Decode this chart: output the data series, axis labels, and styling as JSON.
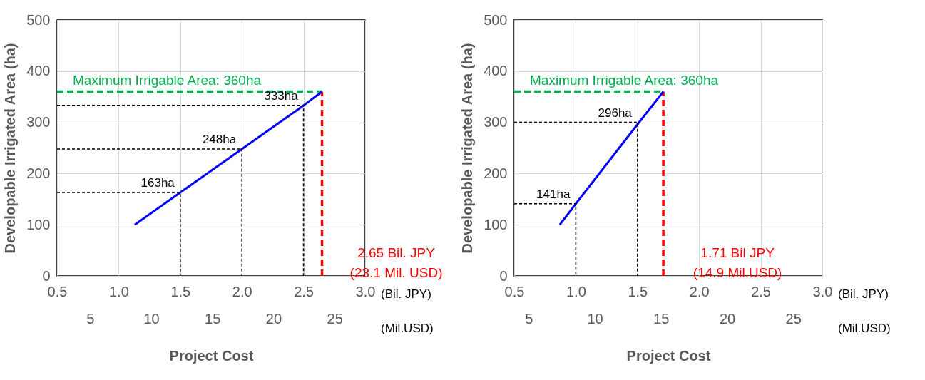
{
  "chart_data": [
    {
      "type": "line",
      "xlabel": "Project Cost",
      "ylabel": "Developable Irrigated Area (ha)",
      "x2label": "(Mil.USD)",
      "xlim": [
        0.5,
        3.0
      ],
      "xticks": [
        0.5,
        {
          "value": 1,
          "label": "1.0"
        },
        1.5,
        {
          "value": 2,
          "label": "2.0"
        },
        2.5,
        {
          "value": 3,
          "label": "3.0"
        }
      ],
      "x2lim": [
        2.3,
        27.5
      ],
      "x2ticks": [
        5,
        10,
        15,
        20,
        25
      ],
      "ylim": [
        0,
        500
      ],
      "yticks": [
        0,
        100,
        200,
        300,
        400,
        500
      ],
      "grid": true,
      "series": [
        {
          "color": "#0000ff",
          "line_style": "solid",
          "x": [
            1.13,
            1.5,
            2.0,
            2.5,
            2.65
          ],
          "values": [
            100,
            163,
            248,
            333,
            360
          ]
        },
        {
          "color": "#000000",
          "line_style": "dashed",
          "x": [
            0.5,
            1.5,
            1.5
          ],
          "values": [
            163,
            163,
            0
          ]
        },
        {
          "color": "#000000",
          "line_style": "dashed",
          "x": [
            0.5,
            2.0,
            2.0
          ],
          "values": [
            248,
            248,
            0
          ]
        },
        {
          "color": "#000000",
          "line_style": "dashed",
          "x": [
            0.5,
            2.5,
            2.5
          ],
          "values": [
            333,
            333,
            0
          ]
        }
      ],
      "ref_lines": [
        {
          "axis": "y",
          "value": 360,
          "label": "Maximum Irrigable Area: 360ha",
          "color": "#00b050",
          "line_style": "dashed"
        },
        {
          "axis": "x",
          "value": 2.65,
          "label": "2.65 Bil. JPY\n(23.1 Mil. USD)",
          "color": "#ff0000",
          "line_style": "dashed"
        }
      ],
      "annotations": [
        "(Bil. JPY)",
        {
          "text": "163ha",
          "x": 1.5,
          "y": 163
        },
        {
          "text": "248ha",
          "x": 2.0,
          "y": 248
        },
        {
          "text": "333ha",
          "x": 2.5,
          "y": 333
        }
      ]
    },
    {
      "type": "line",
      "xlabel": "Project Cost",
      "ylabel": "Developable Irrigated Area (ha)",
      "x2label": "(Mil.USD)",
      "xlim": [
        0.5,
        3.0
      ],
      "xticks": [
        0.5,
        {
          "value": 1,
          "label": "1.0"
        },
        1.5,
        {
          "value": 2,
          "label": "2.0"
        },
        2.5,
        {
          "value": 3,
          "label": "3.0"
        }
      ],
      "x2lim": [
        3.9,
        27.2
      ],
      "x2ticks": [
        5,
        10,
        15,
        20,
        25
      ],
      "ylim": [
        0,
        500
      ],
      "yticks": [
        0,
        100,
        200,
        300,
        400,
        500
      ],
      "grid": true,
      "series": [
        {
          "color": "#0000ff",
          "line_style": "solid",
          "x": [
            0.87,
            1.0,
            1.5,
            1.71
          ],
          "values": [
            100,
            141,
            296,
            360
          ]
        },
        {
          "color": "#000000",
          "line_style": "dashed",
          "x": [
            0.5,
            1.0,
            1.0
          ],
          "values": [
            141,
            141,
            0
          ]
        },
        {
          "color": "#000000",
          "line_style": "dashed",
          "x": [
            0.5,
            1.5,
            1.5
          ],
          "values": [
            300,
            300,
            0
          ]
        }
      ],
      "ref_lines": [
        {
          "axis": "y",
          "value": 360,
          "label": "Maximum Irrigable Area: 360ha",
          "color": "#00b050",
          "line_style": "dashed"
        },
        {
          "axis": "x",
          "value": 1.71,
          "label": "1.71 Bil JPY\n(14.9 Mil.USD)",
          "color": "#ff0000",
          "line_style": "dashed"
        }
      ],
      "annotations": [
        "(Bil. JPY)",
        {
          "text": "141ha",
          "x": 1.0,
          "y": 141
        },
        {
          "text": "296ha",
          "x": 1.5,
          "y": 300
        }
      ]
    }
  ]
}
